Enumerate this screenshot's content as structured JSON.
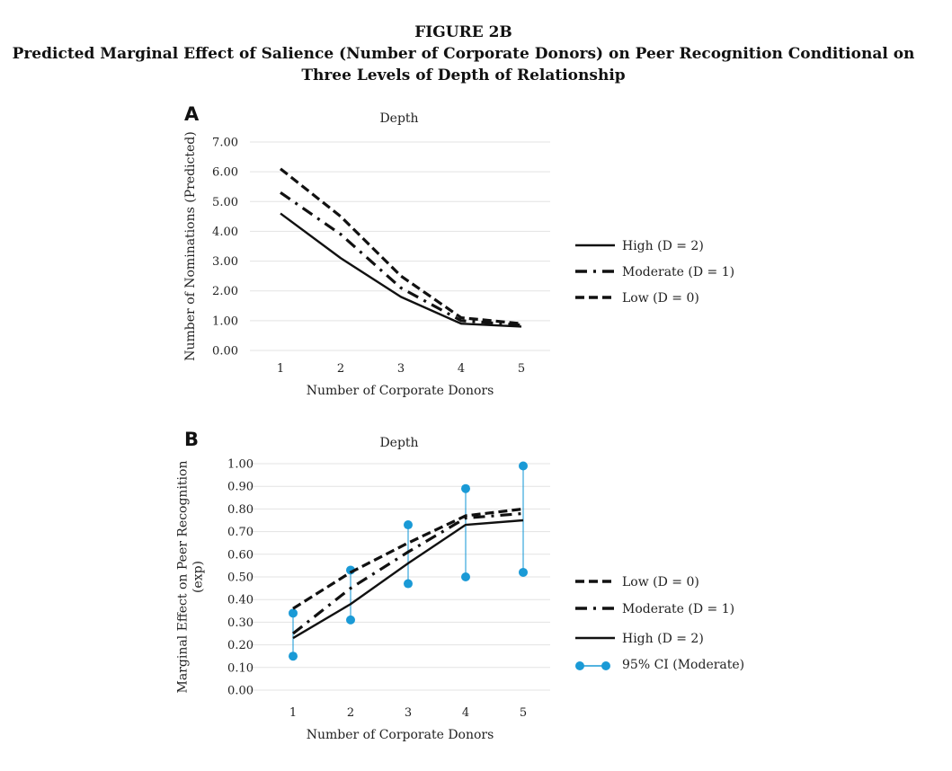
{
  "figure": {
    "label": "FIGURE 2B",
    "title": "Predicted Marginal Effect of Salience (Number of Corporate Donors) on Peer Recognition Conditional on Three Levels of Depth of Relationship"
  },
  "chart_data": [
    {
      "panel": "A",
      "type": "line",
      "title": "Depth",
      "xlabel": "Number of Corporate Donors",
      "ylabel": "Number of Nominations (Predicted)",
      "categories": [
        "1",
        "2",
        "3",
        "4",
        "5"
      ],
      "ylim": [
        0,
        7
      ],
      "yticks": [
        "0.00",
        "1.00",
        "2.00",
        "3.00",
        "4.00",
        "5.00",
        "6.00",
        "7.00"
      ],
      "grid": true,
      "legend_position": "right",
      "series": [
        {
          "name": "High (D = 2)",
          "style": "solid",
          "values": [
            4.6,
            3.1,
            1.8,
            0.9,
            0.8
          ]
        },
        {
          "name": "Moderate (D = 1)",
          "style": "dashdot",
          "values": [
            5.3,
            3.9,
            2.1,
            1.0,
            0.85
          ]
        },
        {
          "name": "Low (D = 0)",
          "style": "dashed",
          "values": [
            6.1,
            4.5,
            2.5,
            1.1,
            0.9
          ]
        }
      ]
    },
    {
      "panel": "B",
      "type": "line",
      "title": "Depth",
      "xlabel": "Number of Corporate Donors",
      "ylabel": [
        "Marginal Effect on Peer Recognition",
        "(exp)"
      ],
      "categories": [
        "1",
        "2",
        "3",
        "4",
        "5"
      ],
      "ylim": [
        0,
        1
      ],
      "yticks": [
        "0.00",
        "0.10",
        "0.20",
        "0.30",
        "0.40",
        "0.50",
        "0.60",
        "0.70",
        "0.80",
        "0.90",
        "1.00"
      ],
      "grid": true,
      "legend_position": "right",
      "series": [
        {
          "name": "Low (D = 0)",
          "style": "dashed",
          "values": [
            0.36,
            0.52,
            0.65,
            0.77,
            0.8
          ]
        },
        {
          "name": "Moderate (D = 1)",
          "style": "dashdot",
          "values": [
            0.25,
            0.45,
            0.61,
            0.76,
            0.78
          ]
        },
        {
          "name": "High (D = 2)",
          "style": "solid",
          "values": [
            0.23,
            0.38,
            0.56,
            0.73,
            0.75
          ]
        }
      ],
      "ci": {
        "name": "95% CI (Moderate)",
        "color": "#1a9ad6",
        "lower": [
          0.15,
          0.31,
          0.47,
          0.5,
          0.52
        ],
        "upper": [
          0.34,
          0.53,
          0.73,
          0.89,
          0.99
        ]
      }
    }
  ]
}
